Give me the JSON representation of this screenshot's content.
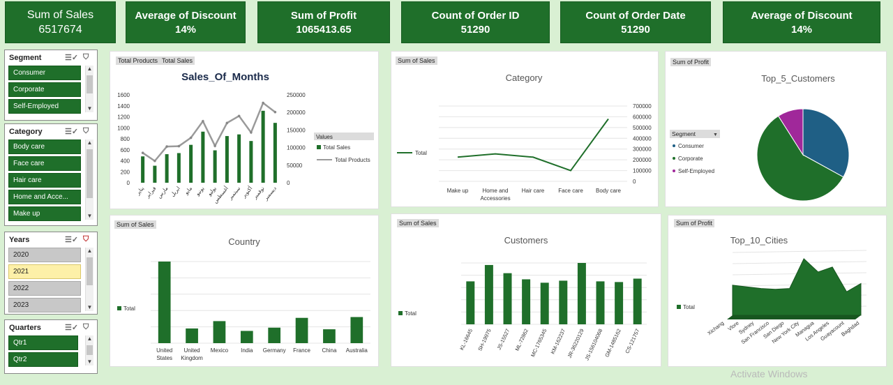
{
  "kpis": [
    {
      "title": "Sum of Sales",
      "value": "6517674"
    },
    {
      "title": "Average of Discount",
      "value": "14%"
    },
    {
      "title": "Sum of Profit",
      "value": "1065413.65"
    },
    {
      "title": "Count of Order ID",
      "value": "51290"
    },
    {
      "title": "Count of Order Date",
      "value": "51290"
    },
    {
      "title": "Average of Discount",
      "value": "14%"
    }
  ],
  "slicers": {
    "segment": {
      "title": "Segment",
      "items": [
        "Consumer",
        "Corporate",
        "Self-Employed"
      ]
    },
    "category": {
      "title": "Category",
      "items": [
        "Body care",
        "Face care",
        "Hair care",
        "Home and Acce...",
        "Make up"
      ]
    },
    "years": {
      "title": "Years",
      "items": [
        "2020",
        "2021",
        "2022",
        "2023"
      ],
      "selected": "2021"
    },
    "quarters": {
      "title": "Quarters",
      "items": [
        "Qtr1",
        "Qtr2"
      ]
    }
  },
  "colors": {
    "accent": "#1f6f2a",
    "grey_line": "#9a9a9a",
    "pie_blue": "#1f5f85",
    "pie_purple": "#a0289a"
  },
  "icons": [
    "multi-select-icon",
    "clear-filter-icon",
    "scroll-up-arrow-icon",
    "scroll-down-arrow-icon"
  ],
  "chart_data": [
    {
      "type": "bar",
      "tags": [
        "Total Products",
        "Total Sales"
      ],
      "title": "Sales_Of_Months",
      "categories": [
        "يناير",
        "فبراير",
        "مارس",
        "ابريل",
        "مايو",
        "يونيو",
        "يوليو",
        "أغسطس",
        "سبتمبر",
        "أكتوبر",
        "نوفمبر",
        "ديسمبر"
      ],
      "series": [
        {
          "name": "Total Sales",
          "type": "bar",
          "axis": "left",
          "values": [
            480,
            310,
            520,
            540,
            690,
            930,
            590,
            850,
            880,
            760,
            1310,
            1090
          ]
        },
        {
          "name": "Total Products",
          "type": "line",
          "axis": "right",
          "values": [
            85000,
            62000,
            103000,
            104000,
            128000,
            175000,
            105000,
            170000,
            190000,
            143000,
            227000,
            201000
          ]
        }
      ],
      "ylim": [
        0,
        1600
      ],
      "yticks": [
        "0",
        "200",
        "400",
        "600",
        "800",
        "1000",
        "1200",
        "1400",
        "1600"
      ],
      "y2lim": [
        0,
        250000
      ],
      "y2ticks": [
        "0",
        "50000",
        "100000",
        "150000",
        "200000",
        "250000"
      ],
      "legend_title": "Values",
      "legend": "right"
    },
    {
      "type": "line",
      "tag": "Sum of Sales",
      "title": "Category",
      "categories": [
        "Make up",
        "Home and Accessories",
        "Hair care",
        "Face care",
        "Body care"
      ],
      "series": [
        {
          "name": "Total",
          "values": [
            225000,
            255000,
            225000,
            100000,
            580000
          ]
        }
      ],
      "ylim": [
        0,
        700000
      ],
      "yticks": [
        "0",
        "100000",
        "200000",
        "300000",
        "400000",
        "500000",
        "600000",
        "700000"
      ],
      "legend": "left"
    },
    {
      "type": "pie",
      "tag": "Sum of Profit",
      "title": "Top_5_Customers",
      "legend_title": "Segment",
      "slices": [
        {
          "name": "Consumer",
          "value": 33
        },
        {
          "name": "Corporate",
          "value": 58
        },
        {
          "name": "Self-Employed",
          "value": 9
        }
      ],
      "legend": "left"
    },
    {
      "type": "bar",
      "tag": "Sum of Sales",
      "title": "Country",
      "categories": [
        "United States",
        "United Kingdom",
        "Mexico",
        "India",
        "Germany",
        "France",
        "China",
        "Australia"
      ],
      "series": [
        {
          "name": "Total",
          "values": [
            100,
            18,
            27,
            15,
            19,
            31,
            17,
            32
          ]
        }
      ],
      "legend": "left"
    },
    {
      "type": "bar",
      "tag": "Sum of Sales",
      "title": "Customers",
      "categories": [
        "KL-16645",
        "SH-19975",
        "JS-15527",
        "ML-72862",
        "MC-1765345",
        "KM-162237",
        "JR-36220129",
        "JS-156104068",
        "GM-1485162",
        "CS-121757"
      ],
      "series": [
        {
          "name": "Total",
          "values": [
            63,
            87,
            75,
            66,
            61,
            64,
            90,
            63,
            62,
            67
          ]
        }
      ],
      "legend": "left"
    },
    {
      "type": "area",
      "tag": "Sum of Profit",
      "title": "Top_10_Cities",
      "categories": [
        "Xichang",
        "Vlore",
        "Sydney",
        "San Francisco",
        "San Diego",
        "New York City",
        "Managua",
        "Los Angeles",
        "Guayacount",
        "Baghdad"
      ],
      "series": [
        {
          "name": "Total",
          "values": [
            28,
            26,
            24,
            23,
            24,
            60,
            44,
            50,
            20,
            30
          ]
        }
      ],
      "legend": "left"
    }
  ],
  "watermark": "Activate Windows"
}
